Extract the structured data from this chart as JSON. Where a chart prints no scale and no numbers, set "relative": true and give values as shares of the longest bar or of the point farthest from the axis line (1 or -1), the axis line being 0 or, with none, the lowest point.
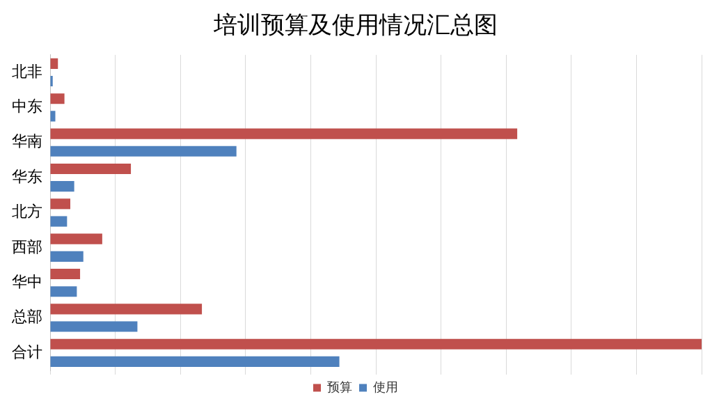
{
  "chart_data": {
    "type": "bar",
    "title": "培训预算及使用情况汇总图",
    "orientation": "horizontal",
    "relative": true,
    "categories": [
      "北非",
      "中东",
      "华南",
      "华东",
      "北方",
      "西部",
      "华中",
      "总部",
      "合计"
    ],
    "series": [
      {
        "name": "预算",
        "color": "#c0504d",
        "values": [
          0.012,
          0.022,
          0.717,
          0.124,
          0.031,
          0.08,
          0.046,
          0.233,
          1
        ]
      },
      {
        "name": "使用",
        "color": "#4f81bd",
        "values": [
          0.004,
          0.008,
          0.286,
          0.037,
          0.026,
          0.051,
          0.041,
          0.134,
          0.444
        ]
      }
    ],
    "grid": "x",
    "legend": "bottom"
  }
}
